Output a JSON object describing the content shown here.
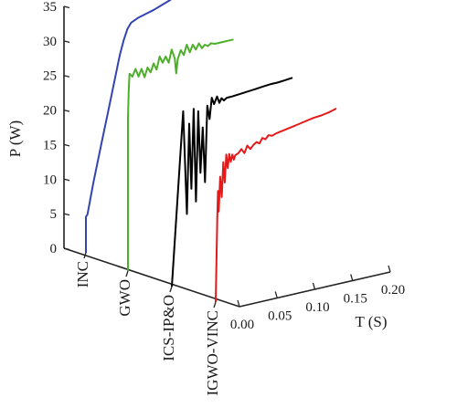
{
  "chart_data": {
    "type": "line",
    "projection": "3d-waterfall",
    "ylabel": "P (W)",
    "zlabel": "T (S)",
    "ylim": [
      0,
      35
    ],
    "yticks": [
      0,
      5,
      10,
      15,
      20,
      25,
      30,
      35
    ],
    "tlim": [
      0,
      0.2
    ],
    "tticks": [
      "0.00",
      "0.05",
      "0.10",
      "0.15",
      "0.20"
    ],
    "categories": [
      "INC",
      "GWO",
      "ICS-IP&O",
      "IGWO-VINC"
    ],
    "series": [
      {
        "name": "INC",
        "color": "#3344b0",
        "points": [
          [
            0.0,
            0
          ],
          [
            0.0,
            5.2
          ],
          [
            0.002,
            5.5
          ],
          [
            0.01,
            10
          ],
          [
            0.02,
            15
          ],
          [
            0.03,
            20
          ],
          [
            0.04,
            25
          ],
          [
            0.045,
            27.5
          ],
          [
            0.05,
            29.5
          ],
          [
            0.055,
            31
          ],
          [
            0.06,
            31.8
          ],
          [
            0.07,
            32.3
          ],
          [
            0.08,
            32.6
          ],
          [
            0.09,
            32.9
          ],
          [
            0.1,
            33.3
          ],
          [
            0.11,
            33.7
          ],
          [
            0.12,
            34.2
          ],
          [
            0.125,
            34.4
          ],
          [
            0.13,
            34.6
          ],
          [
            0.14,
            34.7
          ]
        ]
      },
      {
        "name": "GWO",
        "color": "#4caf2a",
        "points": [
          [
            0.0,
            0
          ],
          [
            0.0,
            22
          ],
          [
            0.001,
            26
          ],
          [
            0.002,
            28.5
          ],
          [
            0.006,
            28.0
          ],
          [
            0.01,
            29.0
          ],
          [
            0.014,
            27.8
          ],
          [
            0.018,
            28.8
          ],
          [
            0.022,
            27.5
          ],
          [
            0.026,
            28.8
          ],
          [
            0.03,
            28.0
          ],
          [
            0.034,
            29.2
          ],
          [
            0.038,
            28.2
          ],
          [
            0.042,
            30.0
          ],
          [
            0.046,
            29.0
          ],
          [
            0.05,
            29.8
          ],
          [
            0.054,
            28.8
          ],
          [
            0.058,
            30.6
          ],
          [
            0.062,
            29.2
          ],
          [
            0.064,
            27.0
          ],
          [
            0.066,
            29.0
          ],
          [
            0.07,
            30.2
          ],
          [
            0.074,
            29.4
          ],
          [
            0.078,
            30.8
          ],
          [
            0.082,
            29.6
          ],
          [
            0.086,
            30.6
          ],
          [
            0.09,
            29.8
          ],
          [
            0.094,
            30.6
          ],
          [
            0.098,
            29.8
          ],
          [
            0.102,
            30.2
          ],
          [
            0.106,
            29.9
          ],
          [
            0.11,
            30.2
          ],
          [
            0.115,
            30.0
          ],
          [
            0.12,
            30.0
          ],
          [
            0.125,
            30.0
          ],
          [
            0.13,
            30.0
          ],
          [
            0.135,
            30.0
          ],
          [
            0.14,
            30.0
          ]
        ]
      },
      {
        "name": "ICS-IP&O",
        "color": "#000000",
        "points": [
          [
            0.0,
            0
          ],
          [
            0.015,
            25.0
          ],
          [
            0.02,
            10.0
          ],
          [
            0.023,
            23.0
          ],
          [
            0.026,
            13.5
          ],
          [
            0.029,
            25.0
          ],
          [
            0.032,
            11.5
          ],
          [
            0.035,
            24.5
          ],
          [
            0.038,
            15.5
          ],
          [
            0.041,
            22.0
          ],
          [
            0.044,
            14.0
          ],
          [
            0.047,
            25.0
          ],
          [
            0.05,
            23.0
          ],
          [
            0.053,
            26.0
          ],
          [
            0.056,
            25.0
          ],
          [
            0.06,
            26.0
          ],
          [
            0.063,
            25.0
          ],
          [
            0.066,
            25.6
          ],
          [
            0.069,
            25.2
          ],
          [
            0.073,
            25.5
          ],
          [
            0.076,
            25.5
          ],
          [
            0.08,
            25.5
          ],
          [
            0.09,
            25.6
          ],
          [
            0.1,
            25.7
          ],
          [
            0.11,
            25.8
          ],
          [
            0.12,
            25.9
          ],
          [
            0.13,
            26.0
          ],
          [
            0.14,
            26.0
          ],
          [
            0.15,
            26.1
          ],
          [
            0.16,
            26.2
          ]
        ]
      },
      {
        "name": "IGWO-VINC",
        "color": "#e41a1a",
        "points": [
          [
            0.0,
            0
          ],
          [
            0.002,
            12.0
          ],
          [
            0.003,
            16.0
          ],
          [
            0.004,
            13.0
          ],
          [
            0.006,
            18.0
          ],
          [
            0.008,
            15.0
          ],
          [
            0.01,
            20.0
          ],
          [
            0.012,
            17.0
          ],
          [
            0.014,
            21.0
          ],
          [
            0.016,
            19.0
          ],
          [
            0.018,
            21.0
          ],
          [
            0.02,
            19.8
          ],
          [
            0.022,
            20.8
          ],
          [
            0.024,
            20.0
          ],
          [
            0.026,
            20.6
          ],
          [
            0.03,
            20.8
          ],
          [
            0.034,
            21.3
          ],
          [
            0.038,
            20.6
          ],
          [
            0.042,
            21.6
          ],
          [
            0.046,
            21.0
          ],
          [
            0.05,
            21.5
          ],
          [
            0.054,
            21.8
          ],
          [
            0.058,
            21.5
          ],
          [
            0.062,
            22.2
          ],
          [
            0.066,
            21.9
          ],
          [
            0.07,
            22.4
          ],
          [
            0.075,
            22.2
          ],
          [
            0.08,
            22.4
          ],
          [
            0.09,
            22.6
          ],
          [
            0.1,
            22.8
          ],
          [
            0.11,
            23.0
          ],
          [
            0.12,
            23.2
          ],
          [
            0.13,
            23.4
          ],
          [
            0.14,
            23.5
          ],
          [
            0.15,
            23.7
          ],
          [
            0.16,
            24.0
          ]
        ]
      }
    ]
  }
}
